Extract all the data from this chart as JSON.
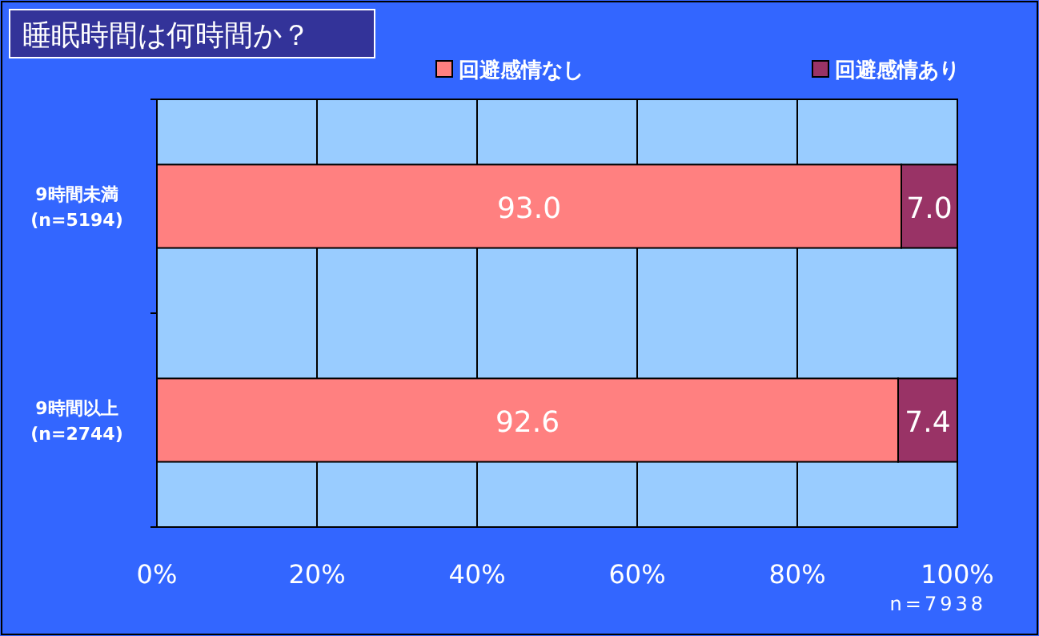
{
  "chart_data": {
    "type": "bar",
    "orientation": "horizontal",
    "stacked": true,
    "title": "睡眠時間は何時間か？",
    "categories": [
      "9時間未満\n(n=5194)",
      "9時間以上\n(n=2744)"
    ],
    "series": [
      {
        "name": "回避感情なし",
        "color": "#ff8080",
        "values": [
          93.0,
          92.6
        ],
        "value_labels": [
          "93.0",
          "92.6"
        ]
      },
      {
        "name": "回避感情あり",
        "color": "#993366",
        "values": [
          7.0,
          7.4
        ],
        "value_labels": [
          "7.0",
          "7.4"
        ]
      }
    ],
    "xlim": [
      0,
      100
    ],
    "xticks": [
      {
        "value": 0,
        "label": "0%"
      },
      {
        "value": 20,
        "label": "20%"
      },
      {
        "value": 40,
        "label": "40%"
      },
      {
        "value": 60,
        "label": "60%"
      },
      {
        "value": 80,
        "label": "80%"
      },
      {
        "value": 100,
        "label": "100%"
      }
    ],
    "grid": "x",
    "legend": "top",
    "annotations": [
      "n=7938"
    ]
  }
}
